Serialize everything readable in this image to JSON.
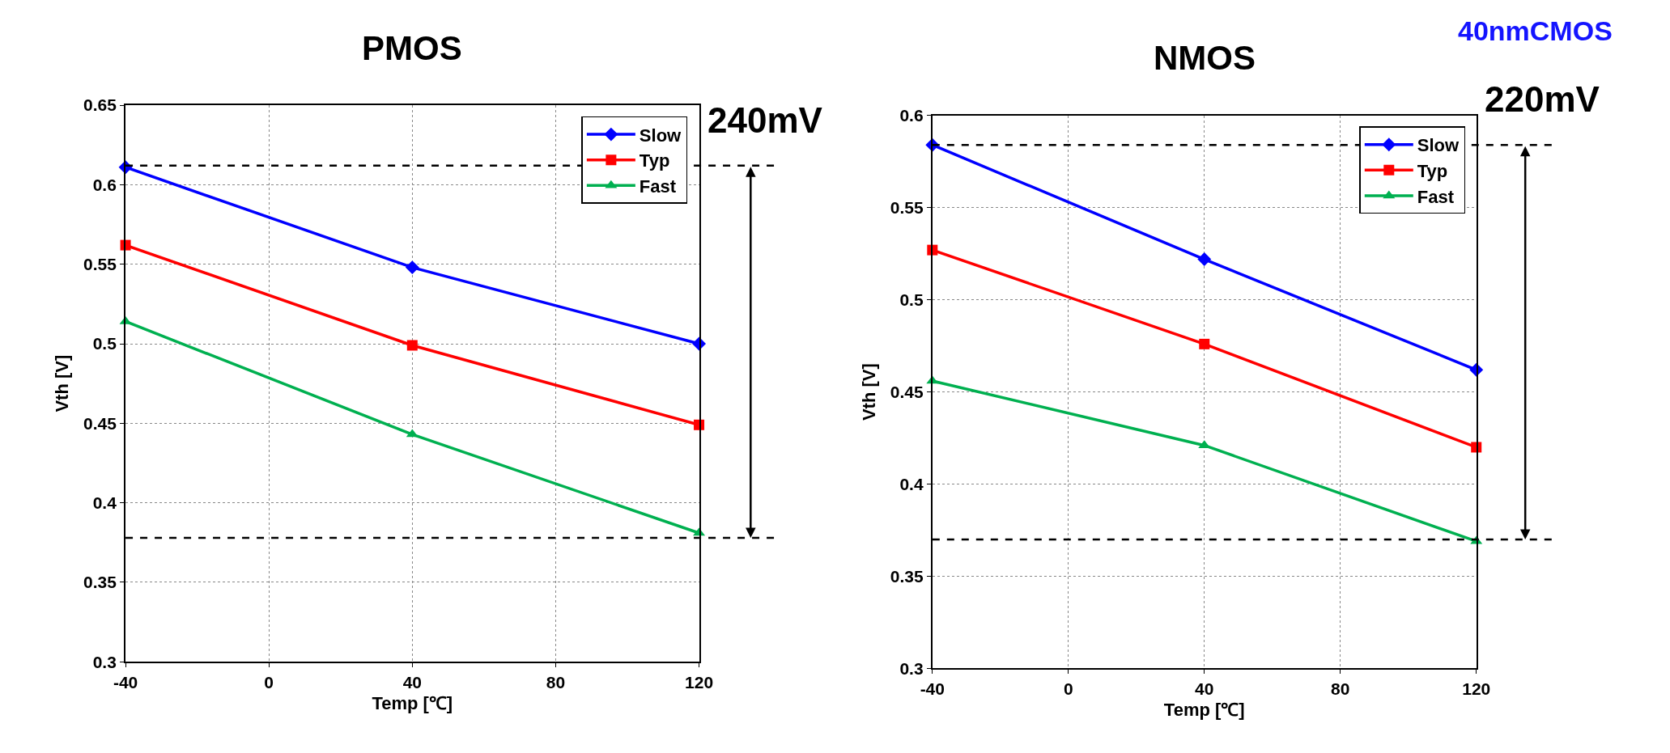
{
  "chart_data": [
    {
      "type": "line",
      "title": "PMOS",
      "xlabel": "Temp [℃]",
      "ylabel": "Vth [V]",
      "x": [
        -40,
        40,
        120
      ],
      "series": [
        {
          "name": "Slow",
          "color": "#0000ff",
          "marker": "diamond",
          "values": [
            0.611,
            0.548,
            0.5
          ]
        },
        {
          "name": "Typ",
          "color": "#ff0000",
          "marker": "square",
          "values": [
            0.562,
            0.499,
            0.449
          ]
        },
        {
          "name": "Fast",
          "color": "#00b050",
          "marker": "triangle",
          "values": [
            0.514,
            0.443,
            0.381
          ]
        }
      ],
      "xlim": [
        -40,
        120
      ],
      "xticks": [
        -40,
        0,
        40,
        80,
        120
      ],
      "ylim": [
        0.3,
        0.65
      ],
      "yticks": [
        0.3,
        0.35,
        0.4,
        0.45,
        0.5,
        0.55,
        0.6,
        0.65
      ],
      "grid": true,
      "legend": "top right",
      "line_style": "solid",
      "ref_lines": [
        {
          "axis": "y",
          "value": 0.612,
          "color": "#000000",
          "line_style": "dashed"
        },
        {
          "axis": "y",
          "value": 0.378,
          "color": "#000000",
          "line_style": "dashed"
        }
      ],
      "annotations": [
        "240mV"
      ]
    },
    {
      "type": "line",
      "title": "NMOS",
      "xlabel": "Temp [℃]",
      "ylabel": "Vth [V]",
      "x": [
        -40,
        40,
        120
      ],
      "series": [
        {
          "name": "Slow",
          "color": "#0000ff",
          "marker": "diamond",
          "values": [
            0.584,
            0.522,
            0.462
          ]
        },
        {
          "name": "Typ",
          "color": "#ff0000",
          "marker": "square",
          "values": [
            0.527,
            0.476,
            0.42
          ]
        },
        {
          "name": "Fast",
          "color": "#00b050",
          "marker": "triangle",
          "values": [
            0.456,
            0.421,
            0.369
          ]
        }
      ],
      "xlim": [
        -40,
        120
      ],
      "xticks": [
        -40,
        0,
        40,
        80,
        120
      ],
      "ylim": [
        0.3,
        0.6
      ],
      "yticks": [
        0.3,
        0.35,
        0.4,
        0.45,
        0.5,
        0.55,
        0.6
      ],
      "grid": true,
      "legend": "top right",
      "line_style": "solid",
      "ref_lines": [
        {
          "axis": "y",
          "value": 0.584,
          "color": "#000000",
          "line_style": "dashed"
        },
        {
          "axis": "y",
          "value": 0.37,
          "color": "#000000",
          "line_style": "dashed"
        }
      ],
      "annotations": [
        "220mV",
        "40nmCMOS"
      ]
    }
  ]
}
